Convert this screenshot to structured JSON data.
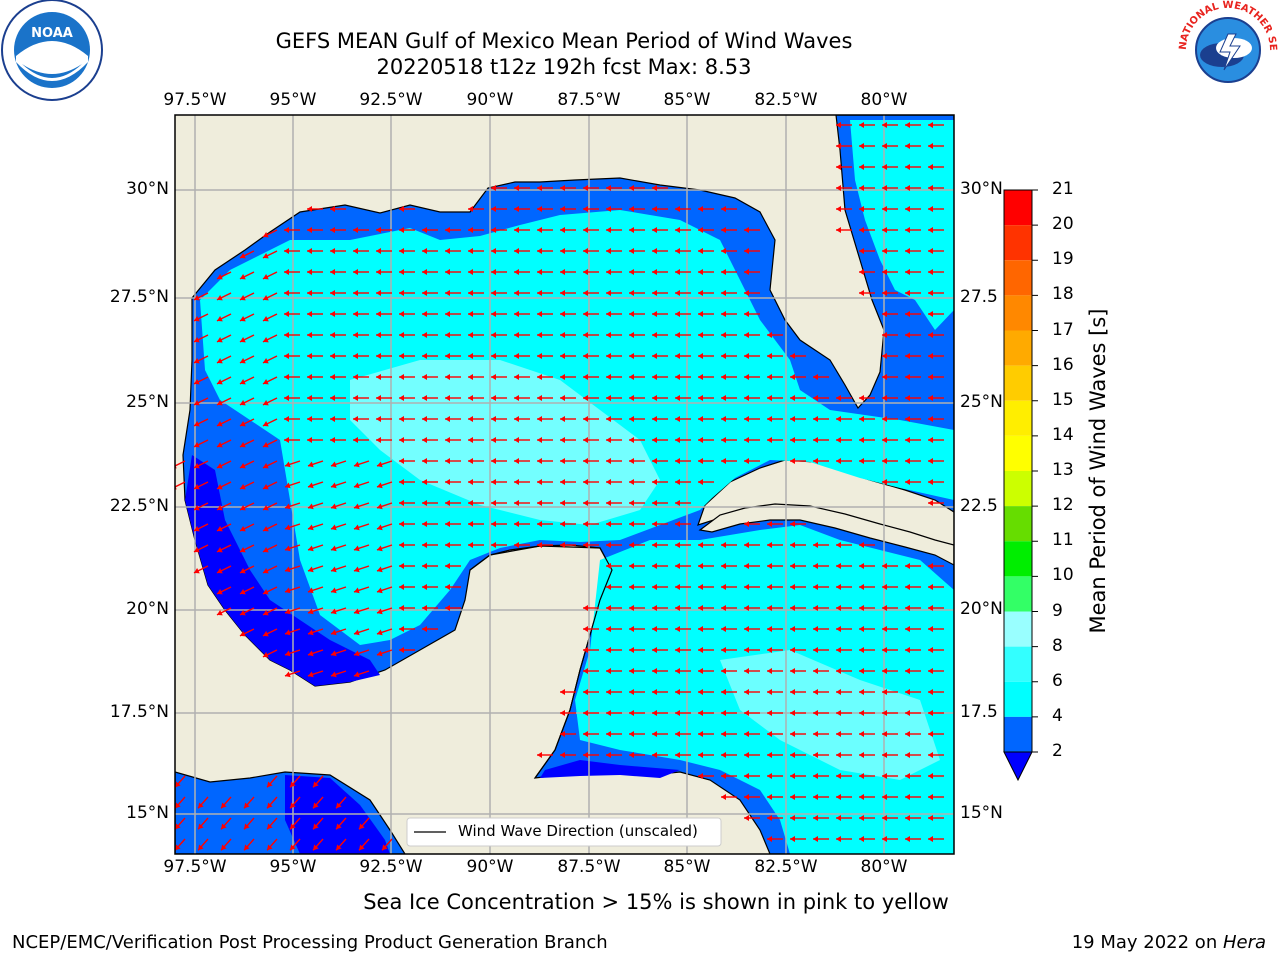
{
  "title": {
    "line1": "GEFS MEAN Gulf of Mexico Mean Period of Wind Waves",
    "line2": "20220518 t12z 192h fcst   Max: 8.53"
  },
  "logos": {
    "left": "NOAA",
    "right": "NATIONAL WEATHER SERVICE"
  },
  "map": {
    "lon_labels": [
      "97.5°W",
      "95°W",
      "92.5°W",
      "90°W",
      "87.5°W",
      "85°W",
      "82.5°W",
      "80°W"
    ],
    "lat_labels_left": [
      "30°N",
      "27.5°N",
      "25°N",
      "22.5°N",
      "20°N",
      "17.5°N",
      "15°N"
    ],
    "lat_labels_right": [
      "30°N",
      "27.5",
      "25°N",
      "22.5",
      "20°N",
      "17.5",
      "15°N"
    ],
    "legend_label": "Wind Wave Direction (unscaled)",
    "arrow_color": "#ff0000",
    "land_color": "#efeddc"
  },
  "colorbar": {
    "label": "Mean Period of Wind Waves [s]",
    "ticks": [
      "2",
      "4",
      "6",
      "8",
      "9",
      "10",
      "11",
      "12",
      "13",
      "14",
      "15",
      "16",
      "17",
      "18",
      "19",
      "20",
      "21"
    ],
    "colors": [
      "#0066ff",
      "#00ffff",
      "#33ffff",
      "#99ffff",
      "#33ff66",
      "#00ee00",
      "#66dd00",
      "#ccff00",
      "#ffff00",
      "#ffee00",
      "#ffcc00",
      "#ffaa00",
      "#ff8800",
      "#ff6600",
      "#ff3300",
      "#ff0000"
    ],
    "under_color": "#0000ff"
  },
  "notes": {
    "sea_ice": "Sea Ice Concentration > 15% is shown in pink to yellow"
  },
  "footer": {
    "left": "NCEP/EMC/Verification Post Processing Product Generation Branch",
    "date": "19 May 2022 on ",
    "machine": "Hera"
  }
}
